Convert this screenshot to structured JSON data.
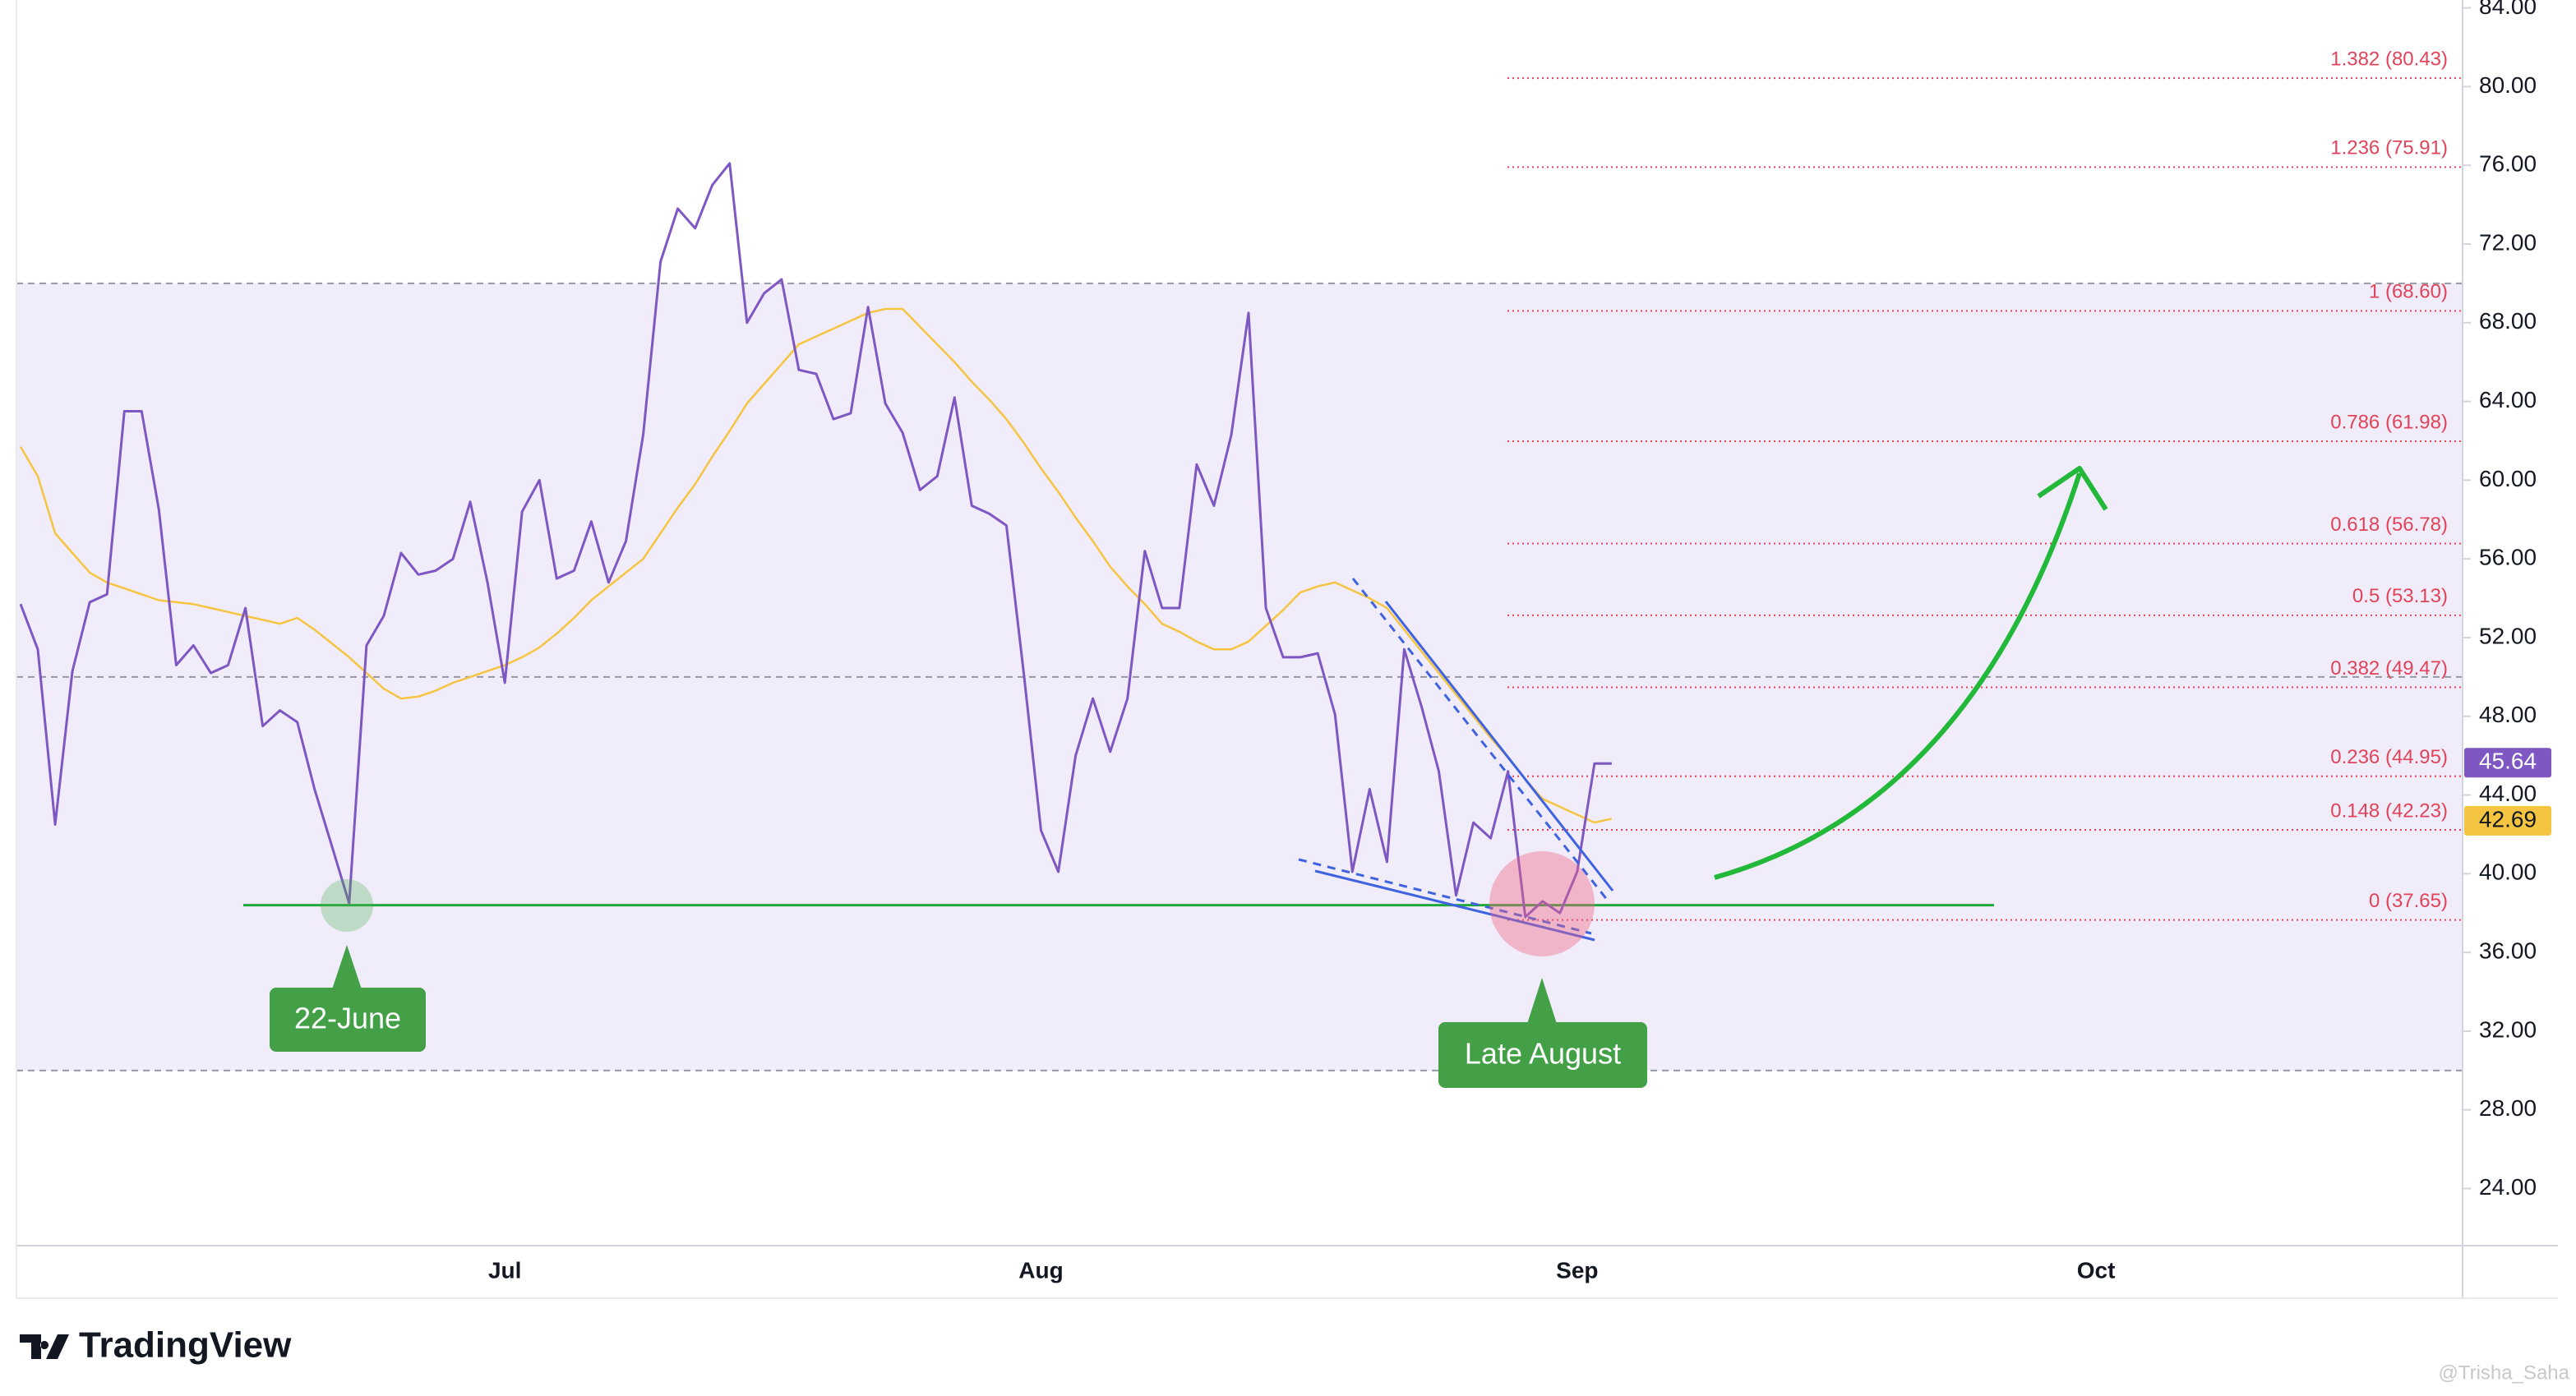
{
  "chart_data": {
    "type": "line",
    "categories": [
      null,
      null,
      null,
      null,
      null,
      null,
      null,
      null,
      null,
      null,
      null,
      null,
      null,
      null,
      null,
      null,
      null,
      null,
      null,
      null,
      null,
      null,
      null,
      null,
      null,
      null,
      null,
      null,
      "Jul",
      null,
      null,
      null,
      null,
      null,
      null,
      null,
      null,
      null,
      null,
      null,
      null,
      null,
      null,
      null,
      null,
      null,
      null,
      null,
      null,
      null,
      null,
      null,
      null,
      null,
      null,
      null,
      null,
      null,
      null,
      "Aug",
      null,
      null,
      null,
      null,
      null,
      null,
      null,
      null,
      null,
      null,
      null,
      null,
      null,
      null,
      null,
      null,
      null,
      null,
      null,
      null,
      null,
      null,
      null,
      null,
      null,
      null,
      null,
      null,
      null,
      null,
      "Sep",
      null,
      null,
      null,
      null,
      null,
      null,
      null,
      null,
      null,
      null,
      null,
      null,
      null,
      null,
      null,
      null,
      null,
      null,
      null,
      null,
      null,
      null,
      null,
      null,
      null,
      null,
      null,
      null,
      null,
      "Oct",
      null,
      null,
      null,
      null,
      null,
      null,
      null,
      null,
      null,
      null,
      null,
      null,
      null,
      null,
      null,
      null,
      null,
      null,
      null,
      null,
      null
    ],
    "series": [
      {
        "color": "#7e57c2",
        "values": [
          53.7,
          51.4,
          42.5,
          50.3,
          53.8,
          54.2,
          63.5,
          63.5,
          58.5,
          50.6,
          51.6,
          50.2,
          50.6,
          53.5,
          47.5,
          48.3,
          47.7,
          44.3,
          41.4,
          38.5,
          51.6,
          53.1,
          56.3,
          55.2,
          55.4,
          56.0,
          58.9,
          54.8,
          49.7,
          58.4,
          60.0,
          55.0,
          55.4,
          57.9,
          54.8,
          56.9,
          62.3,
          71.1,
          73.8,
          72.8,
          75.0,
          76.1,
          68.0,
          69.5,
          70.2,
          65.6,
          65.4,
          63.1,
          63.4,
          68.8,
          63.9,
          62.4,
          59.5,
          60.2,
          64.2,
          58.7,
          58.3,
          57.7,
          50.2,
          42.2,
          40.1,
          46.0,
          48.9,
          46.2,
          48.9,
          56.4,
          53.5,
          53.5,
          60.8,
          58.7,
          62.3,
          68.5,
          53.5,
          51.0,
          51.0,
          51.2,
          48.1,
          40.1,
          44.3,
          40.6,
          51.4,
          48.5,
          45.2,
          38.9,
          42.6,
          41.8,
          45.2,
          37.8,
          38.6,
          38.0,
          40.1,
          45.6,
          45.6,
          null,
          null,
          null,
          null,
          null,
          null,
          null,
          null,
          null,
          null,
          null,
          null,
          null,
          null,
          null,
          null,
          null,
          null,
          null,
          null,
          null,
          null,
          null,
          null,
          null,
          null,
          null,
          null,
          null,
          null,
          null,
          null,
          null,
          null,
          null,
          null,
          null,
          null,
          null,
          null,
          null,
          null,
          null,
          null,
          null,
          null,
          null,
          null,
          null
        ]
      },
      {
        "color": "#f5c542",
        "values": [
          61.7,
          60.2,
          57.3,
          56.3,
          55.3,
          54.8,
          54.5,
          54.2,
          53.9,
          53.8,
          53.7,
          53.5,
          53.3,
          53.1,
          52.9,
          52.7,
          53.0,
          52.4,
          51.7,
          51.0,
          50.2,
          49.4,
          48.9,
          49.0,
          49.3,
          49.7,
          50.0,
          50.3,
          50.6,
          51.0,
          51.5,
          52.2,
          53.0,
          53.9,
          54.6,
          55.3,
          56.0,
          57.3,
          58.6,
          59.8,
          61.2,
          62.5,
          63.9,
          64.9,
          65.9,
          66.9,
          67.3,
          67.7,
          68.1,
          68.5,
          68.7,
          68.7,
          67.8,
          66.9,
          66.0,
          65.0,
          64.1,
          63.1,
          61.9,
          60.6,
          59.4,
          58.1,
          56.9,
          55.6,
          54.6,
          53.7,
          52.7,
          52.3,
          51.8,
          51.4,
          51.4,
          51.8,
          52.6,
          53.4,
          54.3,
          54.6,
          54.8,
          54.4,
          54.0,
          53.5,
          52.4,
          51.3,
          50.2,
          49.1,
          48.0,
          46.9,
          45.9,
          44.8,
          43.8,
          43.4,
          43.0,
          42.6,
          42.8,
          null,
          null,
          null,
          null,
          null,
          null,
          null,
          null,
          null,
          null,
          null,
          null,
          null,
          null,
          null,
          null,
          null,
          null,
          null,
          null,
          null,
          null,
          null,
          null,
          null,
          null,
          null,
          null,
          null,
          null,
          null,
          null,
          null,
          null,
          null,
          null,
          null,
          null,
          null,
          null,
          null,
          null,
          null,
          null,
          null,
          null,
          null,
          null,
          null
        ]
      }
    ],
    "ylim": [
      21.1,
      84.4
    ],
    "yticks": [
      {
        "value": 24,
        "label": "24.00"
      },
      {
        "value": 28,
        "label": "28.00"
      },
      {
        "value": 32,
        "label": "32.00"
      },
      {
        "value": 36,
        "label": "36.00"
      },
      {
        "value": 40,
        "label": "40.00"
      },
      {
        "value": 44,
        "label": "44.00"
      },
      {
        "value": 48,
        "label": "48.00"
      },
      {
        "value": 52,
        "label": "52.00"
      },
      {
        "value": 56,
        "label": "56.00"
      },
      {
        "value": 60,
        "label": "60.00"
      },
      {
        "value": 64,
        "label": "64.00"
      },
      {
        "value": 68,
        "label": "68.00"
      },
      {
        "value": 72,
        "label": "72.00"
      },
      {
        "value": 76,
        "label": "76.00"
      },
      {
        "value": 80,
        "label": "80.00"
      },
      {
        "value": 84,
        "label": "84.00"
      }
    ],
    "band": {
      "upper": 70,
      "middle": 50,
      "lower": 30,
      "color": "#f1ecf9"
    },
    "support_level": 38.4,
    "fib_levels": [
      {
        "value": 80.43,
        "label": "1.382 (80.43)"
      },
      {
        "value": 75.91,
        "label": "1.236 (75.91)"
      },
      {
        "value": 68.6,
        "label": "1 (68.60)"
      },
      {
        "value": 61.98,
        "label": "0.786 (61.98)"
      },
      {
        "value": 56.78,
        "label": "0.618 (56.78)"
      },
      {
        "value": 53.13,
        "label": "0.5 (53.13)"
      },
      {
        "value": 49.47,
        "label": "0.382 (49.47)"
      },
      {
        "value": 44.95,
        "label": "0.236 (44.95)"
      },
      {
        "value": 42.23,
        "label": "0.148 (42.23)"
      },
      {
        "value": 37.65,
        "label": "0 (37.65)"
      }
    ],
    "price_markers": [
      {
        "value": 45.64,
        "color": "#7e57c2",
        "text_color": "#ffffff"
      },
      {
        "value": 42.69,
        "color": "#f5c542",
        "text_color": "#131722"
      }
    ],
    "annotations": [
      "22-June",
      "Late August"
    ]
  },
  "branding": {
    "logo": "TradingView",
    "watermark": "@Trisha_Saha"
  }
}
